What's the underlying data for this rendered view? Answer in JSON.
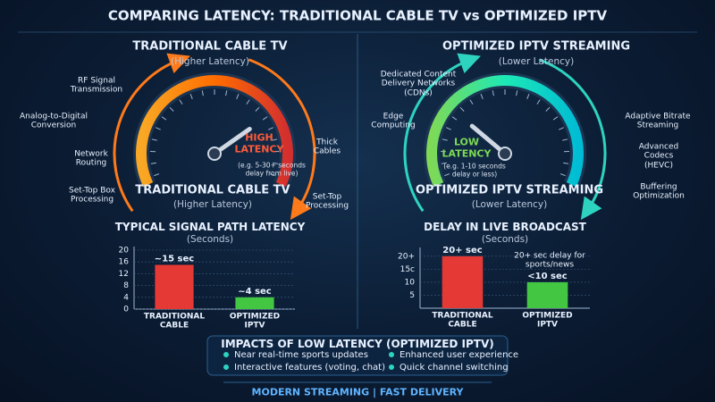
{
  "title": "COMPARING LATENCY: TRADITIONAL CABLE TV vs OPTIMIZED IPTV",
  "cable": {
    "heading": "TRADITIONAL CABLE TV",
    "subheading": "(Higher Latency)",
    "steps": [
      "RF Signal Transmission",
      "Analog-to-Digital Conversion",
      "Network Routing",
      "Set-Top Box Processing",
      "Thick Cables",
      "Set-Top Processing"
    ],
    "gauge_label": "HIGH LATENCY",
    "gauge_note": "(e.g. 5-30+ seconds delay from live)",
    "footer_heading": "TRADITIONAL CABLE TV",
    "footer_subheading": "(Higher Latency)"
  },
  "iptv": {
    "heading": "OPTIMIZED IPTV STREAMING",
    "subheading": "(Lower Latency)",
    "steps": [
      "Dedicated Content Delivery Networks (CDNs)",
      "Edge Computing",
      "Adaptive Bitrate Streaming",
      "Advanced Codecs (HEVC)",
      "Buffering Optimization"
    ],
    "gauge_label": "LOW LATENCY",
    "gauge_note": "(e.g. 1-10 seconds delay or less)",
    "footer_heading": "OPTIMIZED IPTV STREAMING",
    "footer_subheading": "(Lower Latency)"
  },
  "chart_data": [
    {
      "type": "bar",
      "title": "TYPICAL SIGNAL PATH LATENCY",
      "subtitle": "(Seconds)",
      "categories": [
        "TRADITIONAL CABLE",
        "OPTIMIZED IPTV"
      ],
      "values": [
        15,
        4
      ],
      "value_labels": [
        "~15 sec",
        "~4 sec"
      ],
      "colors": [
        "#e53935",
        "#43c743"
      ],
      "ylim": [
        0,
        20
      ],
      "yticks": [
        0,
        4,
        8,
        12,
        16,
        20
      ]
    },
    {
      "type": "bar",
      "title": "DELAY IN LIVE BROADCAST",
      "subtitle": "(Seconds)",
      "categories": [
        "TRADITIONAL CABLE",
        "OPTIMIZED IPTV"
      ],
      "values": [
        20,
        10
      ],
      "value_labels": [
        "20+ sec",
        "<10 sec"
      ],
      "colors": [
        "#e53935",
        "#43c743"
      ],
      "ylim": [
        0,
        22
      ],
      "yticks": [
        {
          "value": 5,
          "label": "5"
        },
        {
          "value": 10,
          "label": "10"
        },
        {
          "value": 15,
          "label": "15c"
        },
        {
          "value": 20,
          "label": "20+"
        }
      ],
      "annotation": "20+ sec delay for sports/news"
    }
  ],
  "impacts": {
    "title": "IMPACTS OF LOW LATENCY (OPTIMIZED IPTV)",
    "items": [
      "Near real-time sports updates",
      "Enhanced user experience",
      "Interactive features (voting, chat)",
      "Quick channel switching"
    ]
  },
  "footer": "MODERN STREAMING | FAST DELIVERY"
}
